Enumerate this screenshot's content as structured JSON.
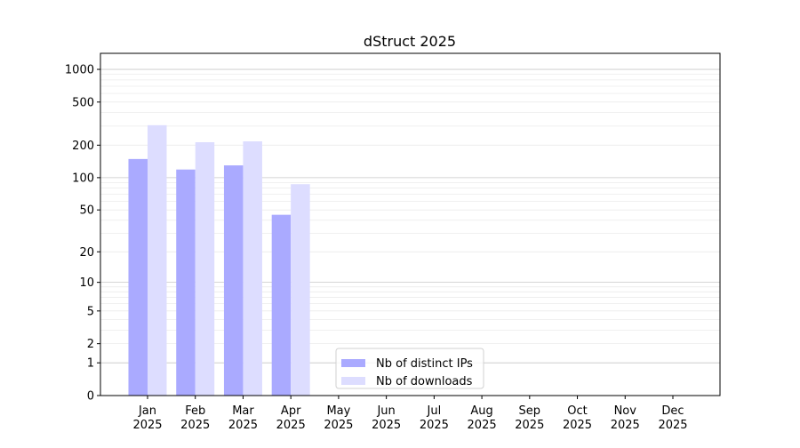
{
  "chart_data": {
    "type": "bar",
    "title": "dStruct 2025",
    "xlabel": "",
    "ylabel": "",
    "yscale": "log10(1+y)",
    "ylim": [
      0,
      1400
    ],
    "yticks": [
      0,
      1,
      2,
      5,
      10,
      20,
      50,
      100,
      200,
      500,
      1000
    ],
    "grid": true,
    "legend_position": "bottom-center",
    "categories": [
      "Jan\n2025",
      "Feb\n2025",
      "Mar\n2025",
      "Apr\n2025",
      "May\n2025",
      "Jun\n2025",
      "Jul\n2025",
      "Aug\n2025",
      "Sep\n2025",
      "Oct\n2025",
      "Nov\n2025",
      "Dec\n2025"
    ],
    "series": [
      {
        "name": "Nb of distinct IPs",
        "color": "#aaaaff",
        "values": [
          149,
          119,
          130,
          45,
          null,
          null,
          null,
          null,
          null,
          null,
          null,
          null
        ]
      },
      {
        "name": "Nb of downloads",
        "color": "#ddddff",
        "values": [
          306,
          213,
          217,
          87,
          null,
          null,
          null,
          null,
          null,
          null,
          null,
          null
        ]
      }
    ]
  }
}
